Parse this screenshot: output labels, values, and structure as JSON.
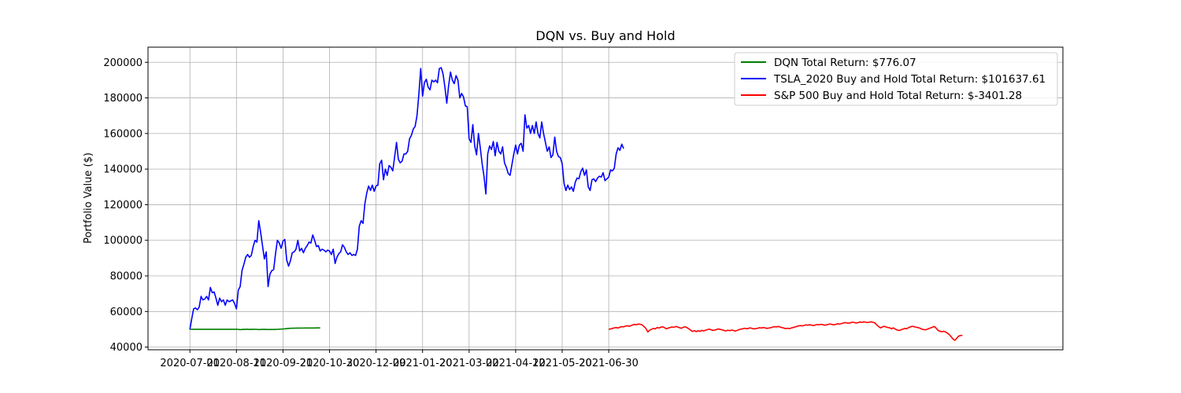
{
  "chart_data": {
    "type": "line",
    "title": "DQN vs. Buy and Hold",
    "xlabel": "",
    "ylabel": "Portfolio Value ($)",
    "ylim": [
      38500,
      208500
    ],
    "yticks": [
      40000,
      60000,
      80000,
      100000,
      120000,
      140000,
      160000,
      180000,
      200000
    ],
    "xticks": [
      {
        "i": 0,
        "label": "2020-07-01"
      },
      {
        "i": 25,
        "label": "2020-08-11"
      },
      {
        "i": 50,
        "label": "2020-09-21"
      },
      {
        "i": 75,
        "label": "2020-10-30"
      },
      {
        "i": 100,
        "label": "2020-12-09"
      },
      {
        "i": 125,
        "label": "2021-01-20"
      },
      {
        "i": 150,
        "label": "2021-03-02"
      },
      {
        "i": 175,
        "label": "2021-04-12"
      },
      {
        "i": 200,
        "label": "2021-05-20"
      },
      {
        "i": 225,
        "label": "2021-06-30"
      }
    ],
    "x_index_range": [
      -22.5,
      469
    ],
    "grid": true,
    "legend_position": "upper-right",
    "series": [
      {
        "name": "DQN Total Return: $776.07",
        "color": "#008000",
        "x_start": 0,
        "values": [
          50000,
          50000,
          50020,
          50010,
          50030,
          50020,
          50000,
          50010,
          50020,
          50030,
          50020,
          50010,
          50000,
          50020,
          50030,
          50020,
          50010,
          50000,
          50010,
          50020,
          50030,
          50020,
          50010,
          50000,
          50010,
          50020,
          49980,
          49800,
          49900,
          50000,
          49950,
          50050,
          49900,
          50000,
          49950,
          50000,
          49980,
          49850,
          49900,
          49950,
          50000,
          49920,
          49880,
          49900,
          49880,
          49920,
          49950,
          49980,
          50050,
          50100,
          50200,
          50250,
          50400,
          50500,
          50550,
          50600,
          50620,
          50650,
          50650,
          50700,
          50680,
          50700,
          50720,
          50720,
          50730,
          50720,
          50740,
          50740,
          50760,
          50760,
          50776
        ]
      },
      {
        "name": "TSLA_2020 Buy and Hold Total Return: $101637.61",
        "color": "#0000ff",
        "x_start": 0,
        "values": [
          50000,
          56000,
          61500,
          62000,
          61000,
          62500,
          68500,
          66500,
          67000,
          68500,
          66500,
          73500,
          70500,
          71000,
          67500,
          63500,
          67500,
          65500,
          66500,
          63500,
          66500,
          65500,
          66000,
          66500,
          64500,
          61500,
          72000,
          74000,
          83000,
          86500,
          90500,
          92000,
          90500,
          91500,
          96500,
          100000,
          99000,
          111000,
          104500,
          97000,
          89500,
          93500,
          74000,
          81000,
          83000,
          83500,
          92500,
          100000,
          98500,
          95500,
          99500,
          100500,
          89000,
          85500,
          88500,
          93000,
          93500,
          95000,
          100000,
          94000,
          95500,
          93000,
          95500,
          97000,
          99000,
          98500,
          103000,
          100000,
          96500,
          97000,
          94000,
          95000,
          94500,
          93500,
          94500,
          94000,
          92000,
          95000,
          87000,
          90500,
          92500,
          93500,
          97500,
          96000,
          93500,
          92000,
          93000,
          91500,
          92000,
          91500,
          95000,
          108000,
          111000,
          109500,
          120500,
          126500,
          130500,
          128000,
          131000,
          127500,
          130500,
          131000,
          143000,
          145000,
          134000,
          140000,
          136500,
          142000,
          141000,
          139000,
          147000,
          155000,
          145500,
          143500,
          144500,
          148500,
          148500,
          150000,
          157000,
          159000,
          162500,
          164000,
          170000,
          182000,
          196500,
          181000,
          188500,
          190500,
          186000,
          184500,
          190000,
          189000,
          190000,
          188500,
          196500,
          197000,
          193500,
          186000,
          177000,
          187000,
          194500,
          190000,
          188000,
          192500,
          190000,
          180000,
          182500,
          180500,
          175500,
          175000,
          157000,
          155000,
          165000,
          153000,
          148000,
          160000,
          152000,
          143000,
          136000,
          126000,
          148500,
          153000,
          151000,
          155500,
          147500,
          155000,
          150000,
          148500,
          152500,
          143500,
          141000,
          137500,
          136500,
          142500,
          148500,
          153500,
          148500,
          153500,
          154500,
          150000,
          170500,
          163000,
          164500,
          160000,
          164500,
          160000,
          166500,
          160000,
          157500,
          166500,
          160000,
          155000,
          150000,
          152500,
          146500,
          148000,
          158000,
          150000,
          147000,
          146500,
          143000,
          132000,
          128000,
          131000,
          128500,
          130000,
          127500,
          132500,
          135000,
          134500,
          138500,
          140500,
          136500,
          139500,
          130000,
          128000,
          134000,
          134500,
          133000,
          135000,
          136000,
          135500,
          138000,
          133500,
          134500,
          135500,
          139500,
          139000,
          140500,
          148500,
          152000,
          150500,
          154000,
          151500
        ]
      },
      {
        "name": "S&P 500 Buy and Hold Total Return: $-3401.28",
        "color": "#ff0000",
        "x_start": 225,
        "values": [
          50000,
          50200,
          50500,
          50800,
          51000,
          50700,
          51200,
          51500,
          51400,
          51800,
          52000,
          51700,
          52100,
          52500,
          52700,
          52600,
          53000,
          52800,
          52500,
          51500,
          50500,
          48500,
          49500,
          50000,
          50500,
          50200,
          51000,
          50700,
          51200,
          51400,
          50900,
          50300,
          50700,
          51000,
          51300,
          51100,
          51600,
          51300,
          50900,
          50600,
          51100,
          51400,
          51000,
          50300,
          49500,
          48800,
          49300,
          48700,
          49200,
          48800,
          49400,
          49100,
          49500,
          49800,
          50100,
          49700,
          49400,
          49600,
          49900,
          50200,
          49900,
          49700,
          49300,
          49100,
          49500,
          49200,
          49600,
          49300,
          49000,
          49400,
          49800,
          50100,
          50300,
          50600,
          50300,
          50500,
          50800,
          50500,
          50200,
          50400,
          50600,
          50900,
          50700,
          51000,
          50800,
          50500,
          50700,
          50900,
          51200,
          51500,
          51300,
          51600,
          51300,
          51000,
          50700,
          50400,
          50600,
          50400,
          50700,
          51000,
          51300,
          51600,
          51900,
          52100,
          51900,
          52200,
          52500,
          52300,
          52600,
          52300,
          52100,
          52400,
          52700,
          52500,
          52800,
          52600,
          52300,
          52500,
          52800,
          53000,
          52700,
          52500,
          52800,
          53100,
          52900,
          53200,
          53500,
          53800,
          53600,
          53400,
          53700,
          54000,
          53800,
          53500,
          53800,
          54100,
          53900,
          54200,
          54000,
          53800,
          54000,
          54200,
          53900,
          53600,
          52500,
          51500,
          50800,
          51300,
          51700,
          51300,
          51000,
          50800,
          50300,
          50800,
          50100,
          49600,
          49300,
          49700,
          50100,
          50500,
          50300,
          50900,
          51300,
          51700,
          51500,
          51200,
          51000,
          50700,
          50200,
          49900,
          49700,
          50000,
          50400,
          50800,
          51200,
          51600,
          50500,
          49300,
          48900,
          48600,
          48900,
          48500,
          47800,
          47000,
          45800,
          44500,
          43800,
          45000,
          46200,
          46500,
          46600
        ]
      }
    ]
  }
}
